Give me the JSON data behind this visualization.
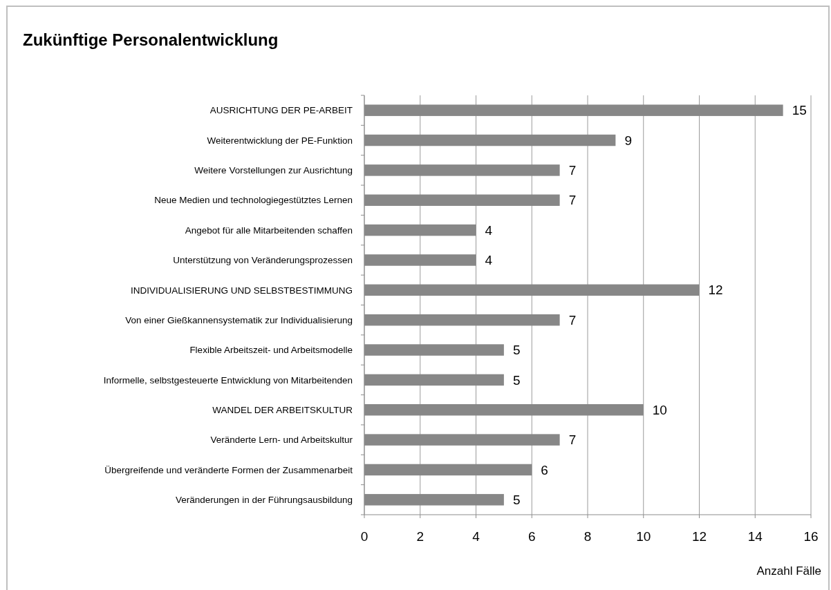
{
  "chart_data": {
    "type": "bar",
    "orientation": "horizontal",
    "title": "Zukünftige Personalentwicklung",
    "xlabel": "Anzahl Fälle",
    "categories": [
      "AUSRICHTUNG DER PE-ARBEIT",
      "Weiterentwicklung der PE-Funktion",
      "Weitere Vorstellungen zur Ausrichtung",
      "Neue Medien und technologiegestütztes Lernen",
      "Angebot für alle Mitarbeitenden schaffen",
      "Unterstützung von Veränderungsprozessen",
      "INDIVIDUALISIERUNG UND SELBSTBESTIMMUNG",
      "Von einer Gießkannensystematik zur Individualisierung",
      "Flexible Arbeitszeit- und Arbeitsmodelle",
      "Informelle, selbstgesteuerte Entwicklung von Mitarbeitenden",
      "WANDEL DER ARBEITSKULTUR",
      "Veränderte Lern- und Arbeitskultur",
      "Übergreifende und veränderte Formen der Zusammenarbeit",
      "Veränderungen in der Führungsausbildung"
    ],
    "values": [
      15,
      9,
      7,
      7,
      4,
      4,
      12,
      7,
      5,
      5,
      10,
      7,
      6,
      5
    ],
    "color": "#878787",
    "xlim": [
      0,
      16
    ],
    "xticks": [
      0,
      2,
      4,
      6,
      8,
      10,
      12,
      14,
      16
    ],
    "grid": "x",
    "data_labels": true
  }
}
